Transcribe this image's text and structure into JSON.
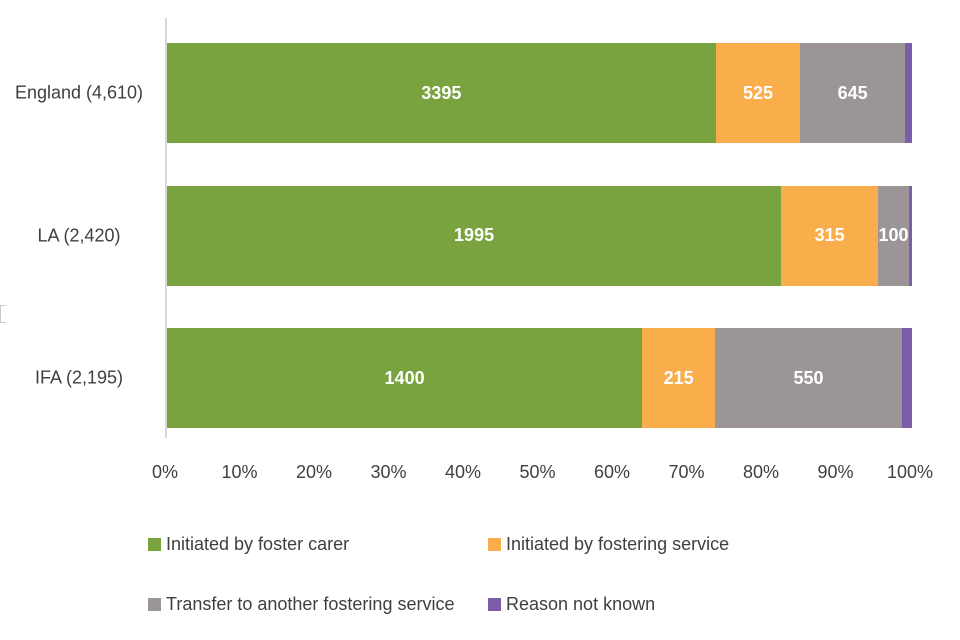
{
  "chart_data": {
    "type": "bar",
    "orientation": "horizontal",
    "stacked": true,
    "percent_stacked": true,
    "title": "",
    "xlabel": "",
    "ylabel": "",
    "xlim": [
      0,
      100
    ],
    "grid": false,
    "legend_position": "bottom",
    "categories": [
      "England (4,610)",
      "LA (2,420)",
      "IFA (2,195)"
    ],
    "totals": [
      4610,
      2420,
      2195
    ],
    "series": [
      {
        "name": "Initiated by foster carer",
        "color": "#78A33E",
        "values": [
          3395,
          1995,
          1400
        ],
        "labels": [
          "3395",
          "1995",
          "1400"
        ]
      },
      {
        "name": "Initiated by fostering service",
        "color": "#F9AE4B",
        "values": [
          525,
          315,
          215
        ],
        "labels": [
          "525",
          "315",
          "215"
        ]
      },
      {
        "name": "Transfer to another fostering service",
        "color": "#9C9598",
        "values": [
          645,
          100,
          550
        ],
        "labels": [
          "645",
          "100",
          "550"
        ]
      },
      {
        "name": "Reason not known",
        "color": "#7B5EA7",
        "values": [
          45,
          10,
          30
        ],
        "labels": [
          "",
          "",
          ""
        ]
      }
    ],
    "x_ticks": [
      "0%",
      "10%",
      "20%",
      "30%",
      "40%",
      "50%",
      "60%",
      "70%",
      "80%",
      "90%",
      "100%"
    ],
    "value_label_color": "#FFFFFF"
  }
}
